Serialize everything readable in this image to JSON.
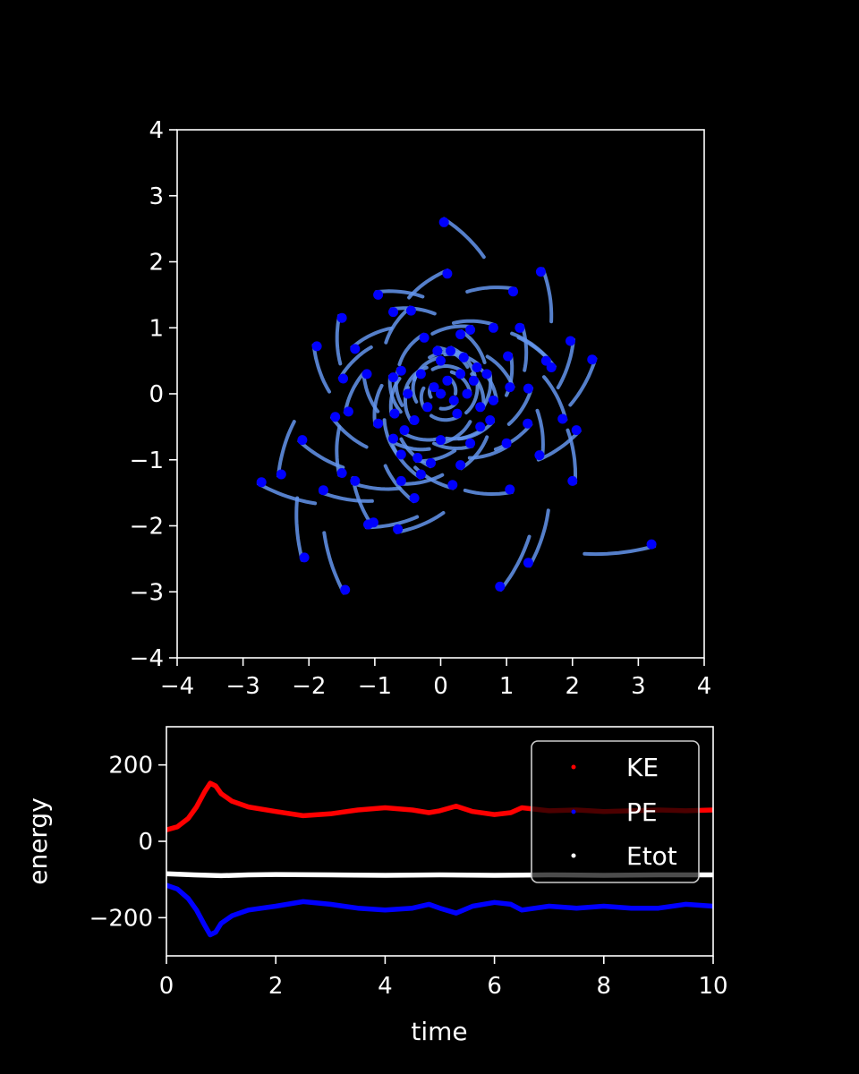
{
  "chart_data": [
    {
      "type": "scatter",
      "title": "",
      "xlabel": "",
      "ylabel": "",
      "xlim": [
        -4,
        4
      ],
      "ylim": [
        -4,
        4
      ],
      "xticks": [
        -4,
        -3,
        -2,
        -1,
        0,
        1,
        2,
        3,
        4
      ],
      "yticks": [
        -4,
        -3,
        -2,
        -1,
        0,
        1,
        2,
        3,
        4
      ],
      "trail_color": "#6495ed",
      "particle_color": "#0000ff",
      "particles": [
        [
          0.05,
          2.6
        ],
        [
          0.1,
          1.82
        ],
        [
          1.52,
          1.85
        ],
        [
          1.1,
          1.55
        ],
        [
          -0.95,
          1.5
        ],
        [
          -1.5,
          1.15
        ],
        [
          -0.72,
          1.24
        ],
        [
          -0.45,
          1.26
        ],
        [
          -1.3,
          0.68
        ],
        [
          -1.88,
          0.72
        ],
        [
          1.2,
          1.0
        ],
        [
          0.8,
          1.0
        ],
        [
          1.97,
          0.8
        ],
        [
          1.6,
          0.5
        ],
        [
          2.3,
          0.52
        ],
        [
          1.68,
          0.4
        ],
        [
          1.02,
          0.57
        ],
        [
          -1.12,
          0.3
        ],
        [
          -1.48,
          0.23
        ],
        [
          -0.72,
          0.25
        ],
        [
          1.33,
          0.08
        ],
        [
          1.05,
          0.1
        ],
        [
          -1.4,
          -0.27
        ],
        [
          -1.6,
          -0.35
        ],
        [
          -0.95,
          -0.45
        ],
        [
          1.85,
          -0.38
        ],
        [
          2.06,
          -0.55
        ],
        [
          -2.1,
          -0.7
        ],
        [
          1.32,
          -0.45
        ],
        [
          -0.72,
          -0.68
        ],
        [
          -0.6,
          -0.92
        ],
        [
          -0.35,
          -0.97
        ],
        [
          1.0,
          -0.75
        ],
        [
          1.5,
          -0.93
        ],
        [
          -0.15,
          -1.05
        ],
        [
          0.3,
          -1.08
        ],
        [
          -0.3,
          -1.22
        ],
        [
          -0.6,
          -1.32
        ],
        [
          0.18,
          -1.38
        ],
        [
          -1.3,
          -1.32
        ],
        [
          -1.5,
          -1.2
        ],
        [
          -1.78,
          -1.46
        ],
        [
          -2.42,
          -1.22
        ],
        [
          -2.72,
          -1.34
        ],
        [
          1.05,
          -1.45
        ],
        [
          2.0,
          -1.32
        ],
        [
          -1.02,
          -1.95
        ],
        [
          -1.1,
          -1.98
        ],
        [
          -0.4,
          -1.58
        ],
        [
          -0.65,
          -2.05
        ],
        [
          3.2,
          -2.28
        ],
        [
          1.33,
          -2.56
        ],
        [
          -2.07,
          -2.48
        ],
        [
          0.9,
          -2.92
        ],
        [
          -1.45,
          -2.97
        ],
        [
          0.0,
          0.0
        ],
        [
          0.1,
          0.2
        ],
        [
          -0.1,
          0.1
        ],
        [
          0.2,
          -0.1
        ],
        [
          0.3,
          0.3
        ],
        [
          -0.2,
          -0.2
        ],
        [
          0.4,
          0.0
        ],
        [
          0.5,
          0.2
        ],
        [
          -0.3,
          0.3
        ],
        [
          0.25,
          -0.3
        ],
        [
          0.6,
          -0.2
        ],
        [
          -0.5,
          0.0
        ],
        [
          0.0,
          0.5
        ],
        [
          0.15,
          0.65
        ],
        [
          0.35,
          0.55
        ],
        [
          -0.4,
          -0.4
        ],
        [
          0.55,
          0.4
        ],
        [
          0.7,
          0.3
        ],
        [
          0.8,
          -0.1
        ],
        [
          0.6,
          -0.5
        ],
        [
          -0.6,
          0.35
        ],
        [
          -0.7,
          -0.3
        ],
        [
          0.0,
          -0.7
        ],
        [
          0.45,
          -0.75
        ],
        [
          -0.25,
          0.85
        ],
        [
          0.3,
          0.9
        ],
        [
          0.45,
          0.97
        ],
        [
          0.75,
          -0.4
        ],
        [
          -0.55,
          -0.55
        ],
        [
          -0.05,
          0.65
        ]
      ]
    },
    {
      "type": "line",
      "title": "",
      "xlabel": "time",
      "ylabel": "energy",
      "xlim": [
        0,
        10
      ],
      "ylim": [
        -300,
        300
      ],
      "xticks": [
        0,
        2,
        4,
        6,
        8,
        10
      ],
      "yticks": [
        -200,
        0,
        200
      ],
      "legend_position": "top-right",
      "series": [
        {
          "name": "KE",
          "color": "#ff0000",
          "x": [
            0,
            0.2,
            0.4,
            0.55,
            0.7,
            0.8,
            0.9,
            1.0,
            1.2,
            1.5,
            2.0,
            2.5,
            3.0,
            3.5,
            4.0,
            4.5,
            4.8,
            5.0,
            5.3,
            5.6,
            6.0,
            6.3,
            6.5,
            7.0,
            7.5,
            8.0,
            8.5,
            9.0,
            9.5,
            10.0
          ],
          "y": [
            30,
            38,
            60,
            90,
            130,
            152,
            145,
            125,
            105,
            90,
            78,
            67,
            72,
            82,
            88,
            82,
            75,
            80,
            92,
            78,
            70,
            75,
            88,
            80,
            82,
            78,
            80,
            82,
            80,
            82
          ]
        },
        {
          "name": "PE",
          "color": "#0000ff",
          "x": [
            0,
            0.2,
            0.4,
            0.55,
            0.7,
            0.8,
            0.9,
            1.0,
            1.2,
            1.5,
            2.0,
            2.5,
            3.0,
            3.5,
            4.0,
            4.5,
            4.8,
            5.0,
            5.3,
            5.6,
            6.0,
            6.3,
            6.5,
            7.0,
            7.5,
            8.0,
            8.5,
            9.0,
            9.5,
            10.0
          ],
          "y": [
            -115,
            -125,
            -150,
            -180,
            -220,
            -245,
            -238,
            -215,
            -195,
            -180,
            -170,
            -158,
            -165,
            -175,
            -180,
            -175,
            -165,
            -175,
            -188,
            -170,
            -160,
            -165,
            -180,
            -170,
            -175,
            -170,
            -175,
            -175,
            -165,
            -170
          ]
        },
        {
          "name": "Etot",
          "color": "#ffffff",
          "x": [
            0,
            0.5,
            1.0,
            1.5,
            2.0,
            3.0,
            4.0,
            5.0,
            6.0,
            7.0,
            8.0,
            9.0,
            10.0
          ],
          "y": [
            -85,
            -88,
            -90,
            -88,
            -87,
            -88,
            -89,
            -88,
            -89,
            -88,
            -89,
            -88,
            -88
          ]
        }
      ]
    }
  ]
}
